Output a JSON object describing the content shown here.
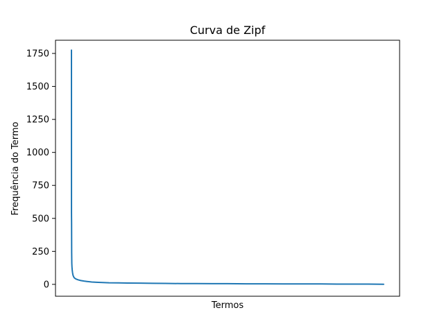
{
  "chart_data": {
    "type": "line",
    "title": "Curva de Zipf",
    "xlabel": "Termos",
    "ylabel": "Frequência do Termo",
    "ylim": [
      -90,
      1850
    ],
    "yticks": [
      0,
      250,
      500,
      750,
      1000,
      1250,
      1500,
      1750
    ],
    "ytick_labels": [
      "0",
      "250",
      "500",
      "750",
      "1000",
      "1250",
      "1500",
      "1750"
    ],
    "xticks_visible": false,
    "grid": false,
    "color": "#1f77b4",
    "series": [
      {
        "x": [
          1,
          2,
          3,
          5,
          8,
          12,
          18,
          25,
          35,
          50,
          70,
          90,
          120,
          160,
          220,
          300,
          400,
          500,
          650,
          800,
          1000,
          1200,
          1500,
          1800,
          2200,
          2600,
          3000,
          3500,
          4000,
          4500,
          5000,
          5600,
          6200,
          6800,
          7400,
          8000,
          8500,
          9000,
          9500,
          10000
        ],
        "values": [
          1775,
          540,
          510,
          470,
          240,
          160,
          130,
          110,
          90,
          70,
          58,
          50,
          44,
          39,
          34,
          29,
          25,
          22,
          18,
          16,
          14,
          12,
          11,
          10,
          9,
          8,
          7,
          6,
          6,
          5,
          5,
          4,
          4,
          3,
          3,
          3,
          2,
          2,
          2,
          1
        ]
      }
    ]
  }
}
